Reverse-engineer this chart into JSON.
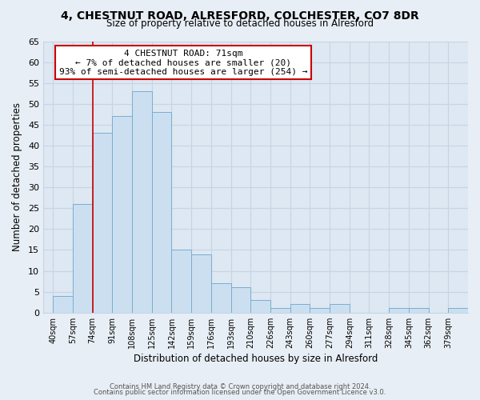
{
  "title1": "4, CHESTNUT ROAD, ALRESFORD, COLCHESTER, CO7 8DR",
  "title2": "Size of property relative to detached houses in Alresford",
  "xlabel": "Distribution of detached houses by size in Alresford",
  "ylabel": "Number of detached properties",
  "bar_color": "#ccdff0",
  "bar_edge_color": "#7aaed0",
  "bin_labels": [
    "40sqm",
    "57sqm",
    "74sqm",
    "91sqm",
    "108sqm",
    "125sqm",
    "142sqm",
    "159sqm",
    "176sqm",
    "193sqm",
    "210sqm",
    "226sqm",
    "243sqm",
    "260sqm",
    "277sqm",
    "294sqm",
    "311sqm",
    "328sqm",
    "345sqm",
    "362sqm",
    "379sqm"
  ],
  "bar_heights": [
    4,
    26,
    43,
    47,
    53,
    48,
    15,
    14,
    7,
    6,
    3,
    1,
    2,
    1,
    2,
    0,
    0,
    1,
    1,
    0,
    1
  ],
  "ylim": [
    0,
    65
  ],
  "yticks": [
    0,
    5,
    10,
    15,
    20,
    25,
    30,
    35,
    40,
    45,
    50,
    55,
    60,
    65
  ],
  "marker_bin_index": 2,
  "marker_color": "#cc0000",
  "annotation_title": "4 CHESTNUT ROAD: 71sqm",
  "annotation_line1": "← 7% of detached houses are smaller (20)",
  "annotation_line2": "93% of semi-detached houses are larger (254) →",
  "annotation_box_edge_color": "#cc0000",
  "footer1": "Contains HM Land Registry data © Crown copyright and database right 2024.",
  "footer2": "Contains public sector information licensed under the Open Government Licence v3.0.",
  "bg_color": "#e8eef5",
  "plot_bg_color": "#dde8f3",
  "grid_color": "#c5d4e3"
}
